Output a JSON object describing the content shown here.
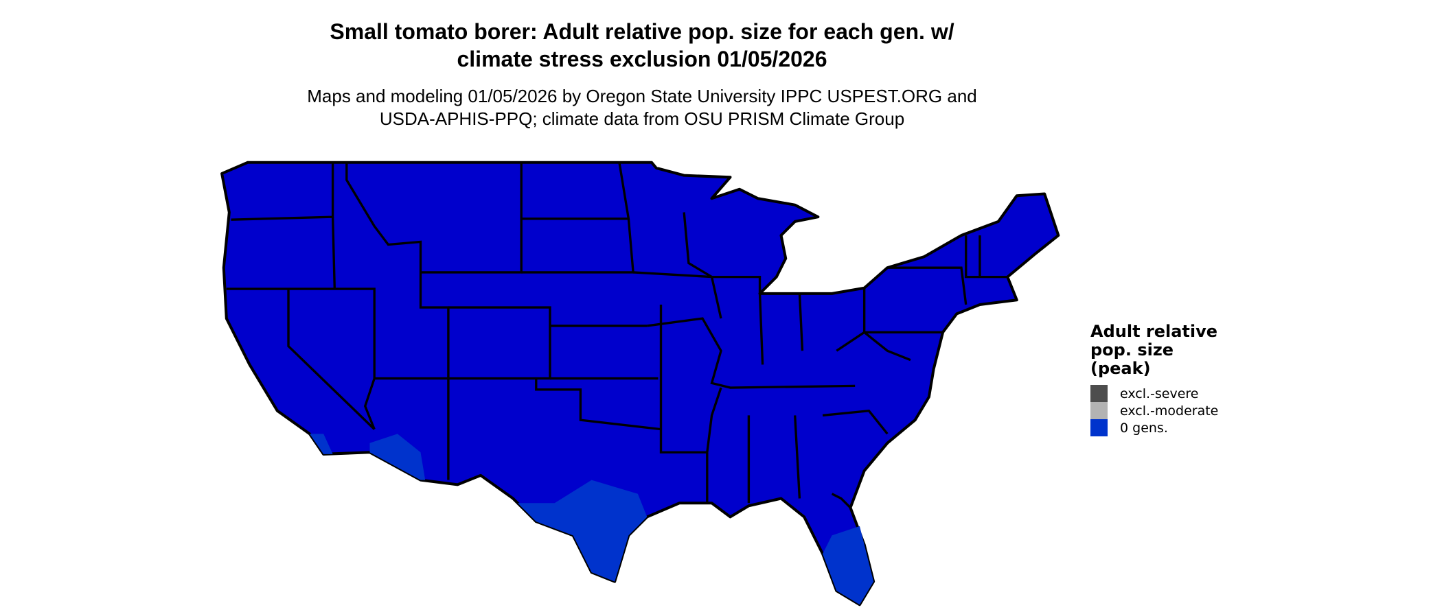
{
  "title": {
    "line1": "Small tomato borer: Adult relative pop. size for each gen. w/",
    "line2": "climate stress exclusion 01/05/2026"
  },
  "subtitle": {
    "line1": "Maps and modeling 01/05/2026 by Oregon State University IPPC USPEST.ORG and",
    "line2": "USDA-APHIS-PPQ; climate data from OSU PRISM Climate Group"
  },
  "map": {
    "region": "Contiguous United States",
    "fill_color": "#0000cc",
    "warm_area_color": "#0033cc",
    "border_color": "#000000"
  },
  "legend": {
    "title": [
      "Adult relative",
      "pop. size",
      "(peak)"
    ],
    "items": [
      {
        "label": "excl.-severe",
        "color": "#4d4d4d"
      },
      {
        "label": "excl.-moderate",
        "color": "#b3b3b3"
      },
      {
        "label": "0 gens.",
        "color": "#0033cc"
      }
    ]
  }
}
